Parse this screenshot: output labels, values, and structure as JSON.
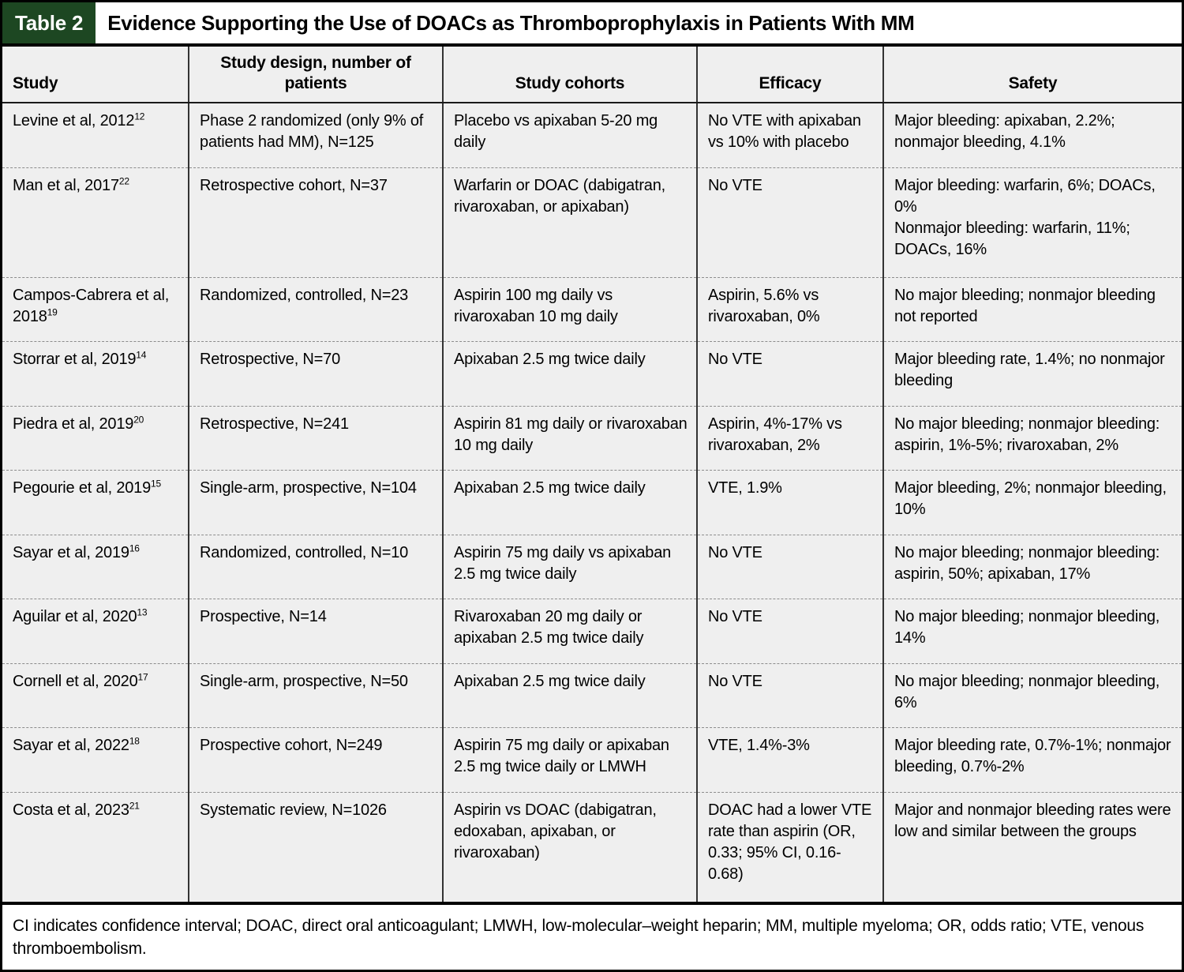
{
  "table": {
    "tag": "Table 2",
    "title": "Evidence Supporting the Use of DOACs as Thromboprophylaxis in Patients With MM",
    "columns": [
      "Study",
      "Study design, number of patients",
      "Study cohorts",
      "Efficacy",
      "Safety"
    ],
    "rows": [
      {
        "study": "Levine et al, 2012",
        "ref": "12",
        "design": "Phase 2 randomized (only 9% of patients had MM), N=125",
        "cohorts": "Placebo vs apixaban 5-20 mg daily",
        "efficacy": "No VTE with apixaban vs 10% with placebo",
        "safety": "Major bleeding: apixaban, 2.2%; nonmajor bleeding, 4.1%"
      },
      {
        "study": "Man et al, 2017",
        "ref": "22",
        "design": "Retrospective cohort, N=37",
        "cohorts": "Warfarin or DOAC (dabigatran, rivaroxaban, or apixaban)",
        "efficacy": "No VTE",
        "safety": "Major bleeding: warfarin, 6%; DOACs, 0%\nNonmajor bleeding: warfarin, 11%; DOACs, 16%"
      },
      {
        "study": "Campos-Cabrera et al, 2018",
        "ref": "19",
        "design": "Randomized, controlled, N=23",
        "cohorts": "Aspirin 100 mg daily vs rivaroxaban 10 mg daily",
        "efficacy": "Aspirin, 5.6% vs rivaroxaban, 0%",
        "safety": "No major bleeding; nonmajor bleeding not reported"
      },
      {
        "study": "Storrar et al, 2019",
        "ref": "14",
        "design": "Retrospective, N=70",
        "cohorts": "Apixaban 2.5 mg twice daily",
        "efficacy": "No VTE",
        "safety": "Major bleeding rate, 1.4%; no nonmajor bleeding"
      },
      {
        "study": "Piedra et al, 2019",
        "ref": "20",
        "design": "Retrospective, N=241",
        "cohorts": "Aspirin 81 mg daily or rivaroxaban 10 mg daily",
        "efficacy": "Aspirin, 4%-17% vs rivaroxaban, 2%",
        "safety": "No major bleeding; nonmajor bleeding: aspirin, 1%-5%; rivaroxaban, 2%"
      },
      {
        "study": "Pegourie et al, 2019",
        "ref": "15",
        "design": "Single-arm, prospective, N=104",
        "cohorts": "Apixaban 2.5 mg twice daily",
        "efficacy": "VTE, 1.9%",
        "safety": "Major bleeding, 2%; nonmajor bleeding, 10%"
      },
      {
        "study": "Sayar et al, 2019",
        "ref": "16",
        "design": "Randomized, controlled, N=10",
        "cohorts": "Aspirin 75 mg daily vs apixaban 2.5 mg twice daily",
        "efficacy": "No VTE",
        "safety": "No major bleeding; nonmajor bleeding: aspirin, 50%; apixaban, 17%"
      },
      {
        "study": "Aguilar et al, 2020",
        "ref": "13",
        "design": "Prospective, N=14",
        "cohorts": "Rivaroxaban 20 mg daily or apixaban 2.5 mg twice daily",
        "efficacy": "No VTE",
        "safety": "No major bleeding; nonmajor bleeding, 14%"
      },
      {
        "study": "Cornell et al, 2020",
        "ref": "17",
        "design": "Single-arm, prospective, N=50",
        "cohorts": "Apixaban 2.5 mg twice daily",
        "efficacy": "No VTE",
        "safety": "No major bleeding; nonmajor bleeding, 6%"
      },
      {
        "study": "Sayar et al, 2022",
        "ref": "18",
        "design": "Prospective cohort, N=249",
        "cohorts": "Aspirin 75 mg daily or apixaban 2.5 mg twice daily or LMWH",
        "efficacy": "VTE, 1.4%-3%",
        "safety": "Major bleeding rate, 0.7%-1%; nonmajor bleeding, 0.7%-2%"
      },
      {
        "study": "Costa et al, 2023",
        "ref": "21",
        "design": "Systematic review, N=1026",
        "cohorts": "Aspirin vs DOAC (dabigatran, edoxaban, apixaban, or rivaroxaban)",
        "efficacy": "DOAC had a lower VTE rate than aspirin (OR, 0.33; 95% CI, 0.16-0.68)",
        "safety": "Major and nonmajor bleeding rates were low and similar between the groups"
      }
    ],
    "footnote": "CI indicates confidence interval; DOAC, direct oral anticoagulant; LMWH, low-molecular–weight heparin; MM, multiple myeloma; OR, odds ratio; VTE, venous thromboembolism."
  },
  "colors": {
    "tag_bg": "#1d4722",
    "cell_bg": "#efefef",
    "border": "#000000",
    "dashed_divider": "#8c8c8c"
  }
}
